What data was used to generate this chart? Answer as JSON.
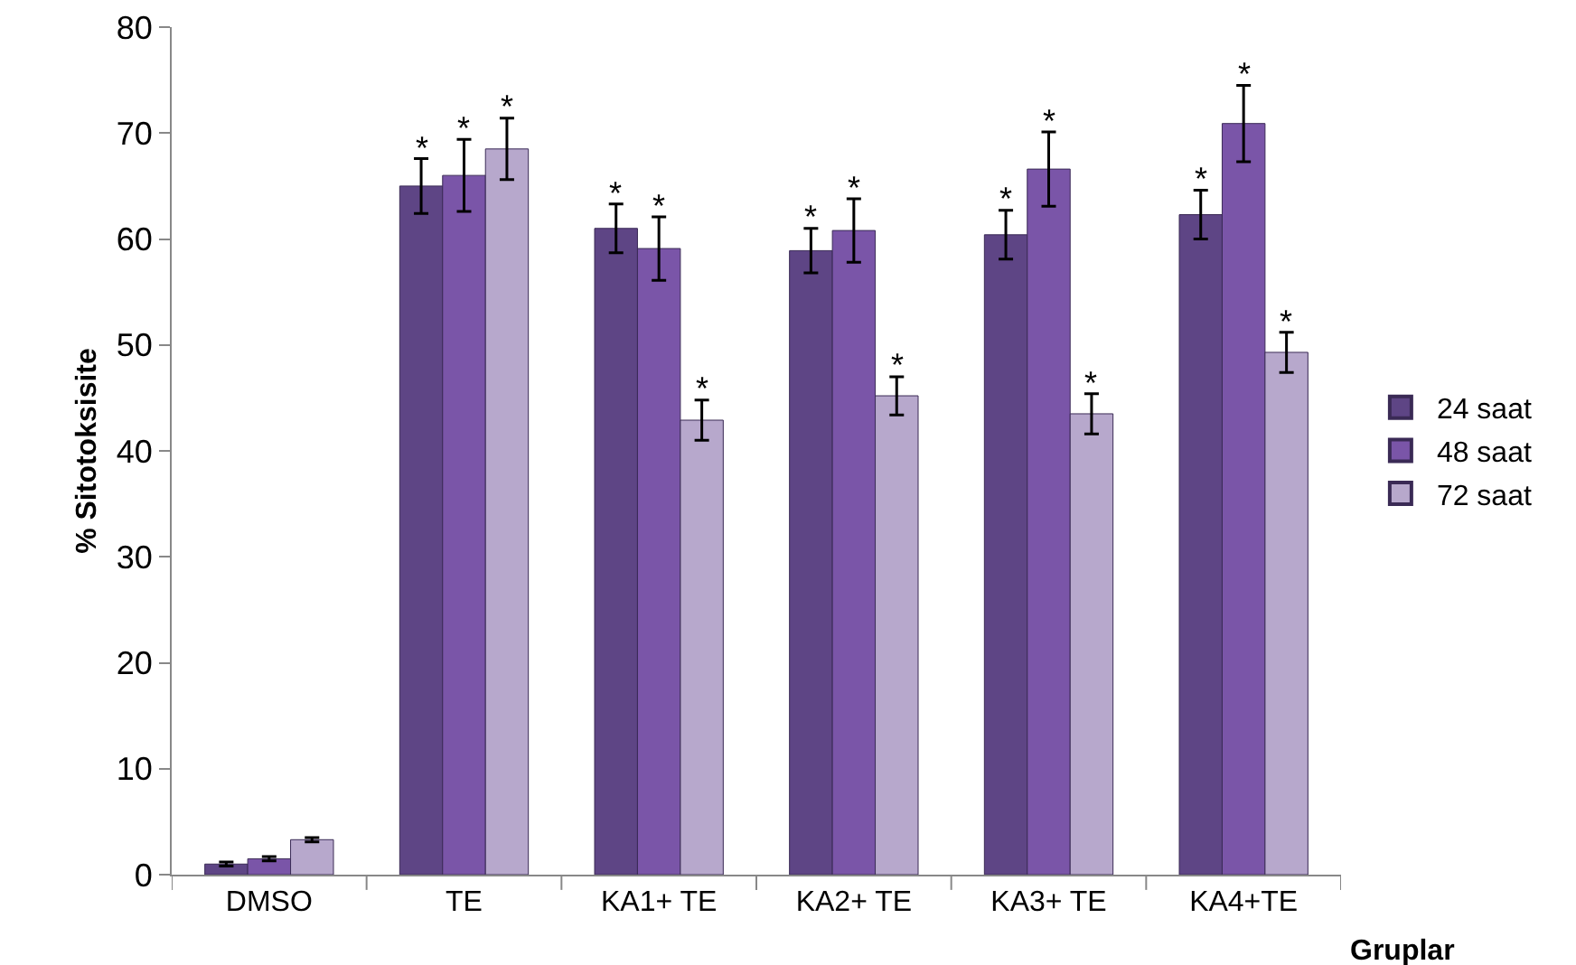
{
  "chart_data": {
    "type": "bar",
    "xlabel": "Gruplar",
    "ylabel": "% Sitotoksisite",
    "categories": [
      "DMSO",
      "TE",
      "KA1+ TE",
      "KA2+ TE",
      "KA3+ TE",
      "KA4+TE"
    ],
    "series": [
      {
        "name": "24 saat",
        "color": "#5e4585",
        "values": [
          1.0,
          65,
          61,
          58.9,
          60.4,
          62.3
        ],
        "errors": [
          0.2,
          2.6,
          2.3,
          2.1,
          2.3,
          2.3
        ],
        "value_labels": [
          null,
          "*",
          "*",
          "*",
          "*",
          "*"
        ]
      },
      {
        "name": "48 saat",
        "color": "#7a55a8",
        "values": [
          1.5,
          66,
          59.1,
          60.8,
          66.6,
          70.9
        ],
        "errors": [
          0.2,
          3.4,
          3,
          3,
          3.5,
          3.6
        ],
        "value_labels": [
          null,
          "*",
          "*",
          "*",
          "*",
          "*"
        ]
      },
      {
        "name": "72 saat",
        "color": "#b7a8cc",
        "values": [
          3.3,
          68.5,
          42.9,
          45.2,
          43.5,
          49.3
        ],
        "errors": [
          0.2,
          2.9,
          1.9,
          1.8,
          1.9,
          1.9
        ],
        "value_labels": [
          null,
          "*",
          "*",
          "*",
          "*",
          "*"
        ]
      }
    ],
    "ylim": [
      0,
      80
    ],
    "yticks": [
      0,
      10,
      20,
      30,
      40,
      50,
      60,
      70,
      80
    ],
    "grid": false,
    "legend": "right"
  }
}
